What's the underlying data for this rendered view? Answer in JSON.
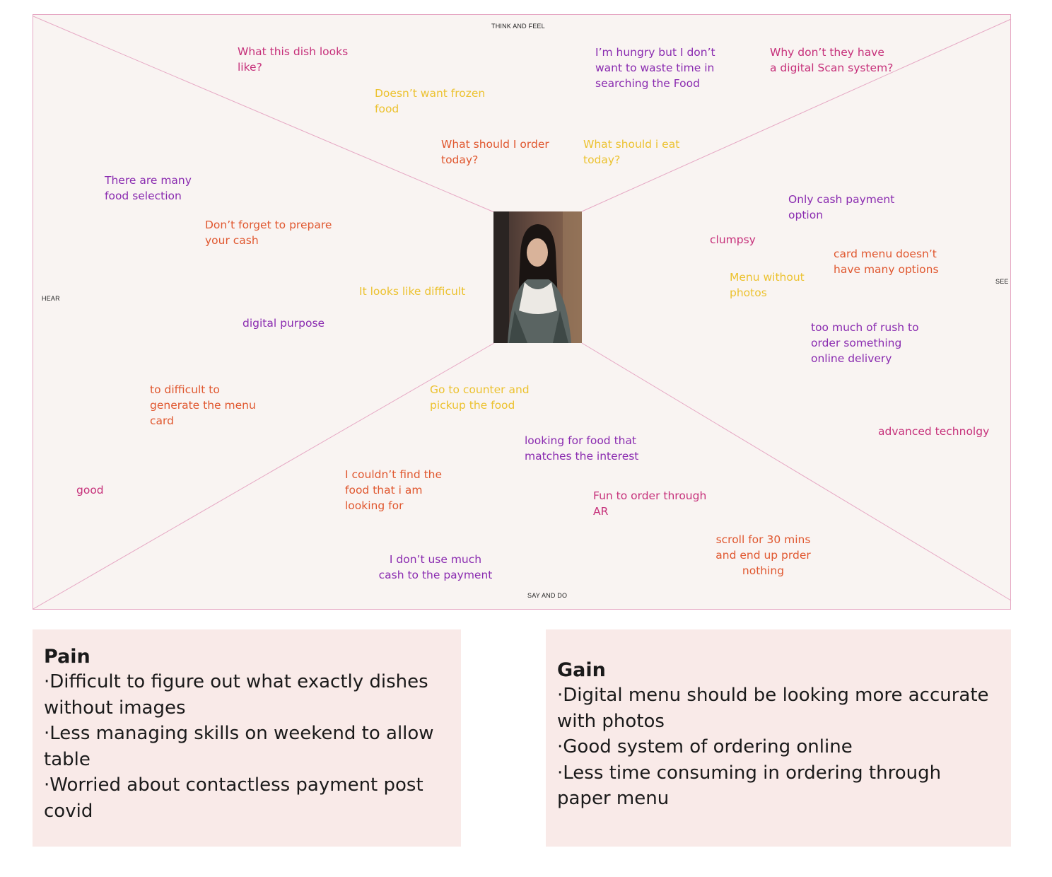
{
  "quadrants": {
    "think_feel": "THINK AND FEEL",
    "see": "SEE",
    "hear": "HEAR",
    "say_do": "SAY AND DO"
  },
  "notes": {
    "n1": "What this dish looks like?",
    "n2": "Doesn’t want frozen food",
    "n3": "I’m hungry but I don’t want to waste time in searching the Food",
    "n4": "Why don’t they have a digital Scan system?",
    "n5": "What should I order today?",
    "n6": "What should i eat today?",
    "n7": "There are many food selection",
    "n8": "Don’t forget to prepare your cash",
    "n9": "Only cash payment option",
    "n10": "clumpsy",
    "n11": "card menu doesn’t have many options",
    "n12": "Menu without photos",
    "n13": "It looks like difficult",
    "n14": "digital purpose",
    "n15": "too much of rush to order something online delivery",
    "n16": "to difficult to generate the menu card",
    "n17": "Go to counter and pickup the food",
    "n18": "advanced technolgy",
    "n19": "looking for food that matches the interest",
    "n20": "good",
    "n21": "I couldn’t find the food that i am looking for",
    "n22": "Fun to order through AR",
    "n23": "scroll for 30 mins and end up prder nothing",
    "n24": "I don’t use much cash to the payment"
  },
  "colors": {
    "magenta": "#c6307a",
    "purple": "#8a2bb0",
    "orange": "#e0572f",
    "yellow": "#ecc230",
    "line": "#e6a8c4",
    "box": "#f9eae8"
  },
  "pain": {
    "title": "Pain",
    "items": [
      "·Difficult to figure out what exactly dishes without images",
      "·Less managing skills on weekend to allow table",
      "·Worried about contactless payment post covid"
    ]
  },
  "gain": {
    "title": "Gain",
    "items": [
      "·Digital menu should be looking more accurate with photos",
      "·Good system of ordering online",
      "·Less time consuming in ordering through paper menu"
    ]
  }
}
